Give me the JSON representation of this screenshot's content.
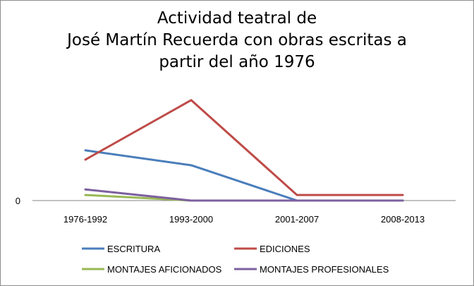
{
  "chart_data": {
    "type": "line",
    "title_lines": [
      "Actividad teatral de",
      "José Martín Recuerda con obras escritas a",
      "partir del año 1976"
    ],
    "categories": [
      "1976-1992",
      "1993-2000",
      "2001-2007",
      "2008-2013"
    ],
    "y_tick_labels": [
      "0"
    ],
    "ylim": [
      0,
      30
    ],
    "grid": false,
    "legend_position": "bottom",
    "series": [
      {
        "name": "ESCRITURA",
        "color": "#4a7ebb",
        "values": [
          13.5,
          9.5,
          0,
          0
        ]
      },
      {
        "name": "EDICIONES",
        "color": "#be4b48",
        "values": [
          11,
          27,
          1.5,
          1.5
        ]
      },
      {
        "name": "MONTAJES AFICIONADOS",
        "color": "#98b954",
        "values": [
          1.5,
          0,
          0,
          0
        ]
      },
      {
        "name": "MONTAJES PROFESIONALES",
        "color": "#7d60a0",
        "values": [
          3,
          0,
          0,
          0
        ]
      }
    ]
  }
}
